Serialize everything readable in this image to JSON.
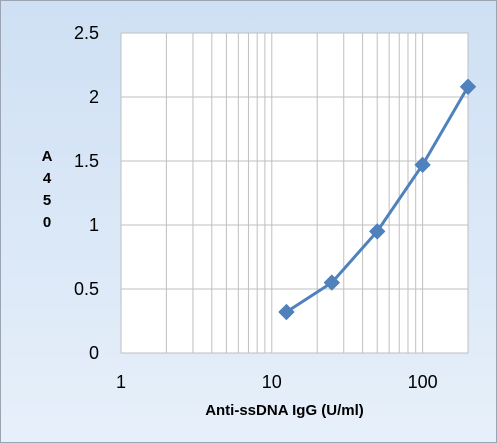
{
  "chart_data": {
    "type": "scatter",
    "mode": "lines+markers",
    "x_scale": "log",
    "xlim": [
      1,
      200
    ],
    "ylim": [
      0,
      2.5
    ],
    "y_ticks": [
      "0",
      "0.5",
      "1",
      "1.5",
      "2",
      "2.5"
    ],
    "x_ticks": [
      "1",
      "10",
      "100"
    ],
    "xlabel": "Anti-ssDNA IgG (U/ml)",
    "ylabel": "A450",
    "ylabel_chars": [
      "A",
      "4",
      "5",
      "0"
    ],
    "grid": true,
    "series": [
      {
        "x": [
          12.5,
          25,
          50,
          100,
          200
        ],
        "y": [
          0.32,
          0.55,
          0.95,
          1.47,
          2.08
        ],
        "color": "#4f81bd",
        "marker": "diamond"
      }
    ],
    "colors": {
      "background_top": "#cfe0f4",
      "background_bottom": "#e7f0fa",
      "plot_area": "#ffffff",
      "grid": "#bfbfbf",
      "series": "#4f81bd"
    }
  }
}
